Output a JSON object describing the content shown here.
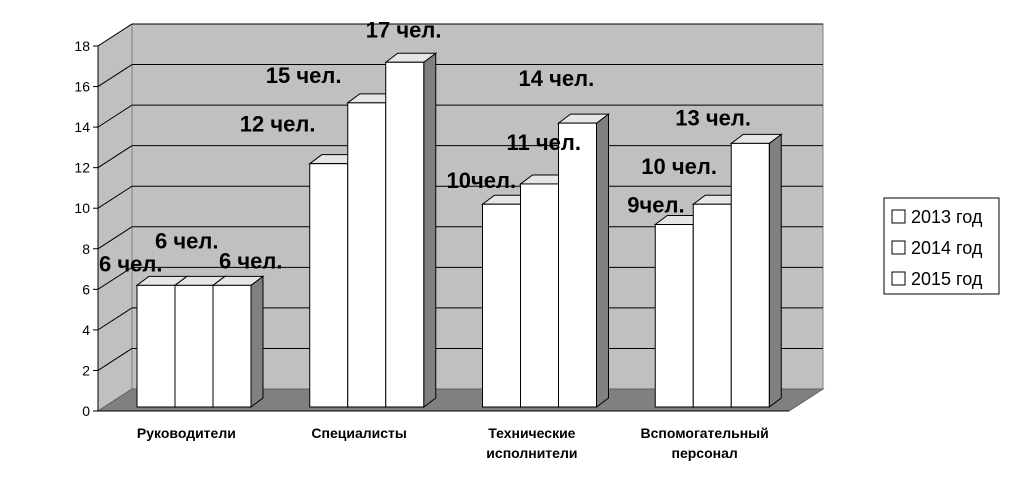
{
  "chart_data": {
    "type": "bar",
    "categories": [
      [
        "Руководители"
      ],
      [
        "Специалисты"
      ],
      [
        "Технические",
        "исполнители"
      ],
      [
        "Вспомогательный",
        "персонал"
      ]
    ],
    "series": [
      {
        "name": "2013 год",
        "values": [
          6,
          12,
          10,
          9
        ],
        "labels": [
          "6 чел.",
          "12 чел.",
          "10чел.",
          "9чел."
        ]
      },
      {
        "name": "2014 год",
        "values": [
          6,
          15,
          11,
          10
        ],
        "labels": [
          "6 чел.",
          "15 чел.",
          "11 чел.",
          "10 чел."
        ]
      },
      {
        "name": "2015 год",
        "values": [
          6,
          17,
          14,
          13
        ],
        "labels": [
          "6 чел.",
          "17 чел.",
          "14 чел.",
          "13 чел."
        ]
      }
    ],
    "yticks": [
      "0",
      "2",
      "4",
      "6",
      "8",
      "10",
      "12",
      "14",
      "16",
      "18"
    ],
    "ylim": [
      0,
      18
    ],
    "grid": true,
    "legend_position": "right",
    "colors": {
      "bar_face": "#ffffff",
      "bar_top": "#e6e6e6",
      "bar_side": "#808080",
      "wall": "#c0c0c0",
      "floor": "#808080",
      "grid": "#000000"
    }
  }
}
